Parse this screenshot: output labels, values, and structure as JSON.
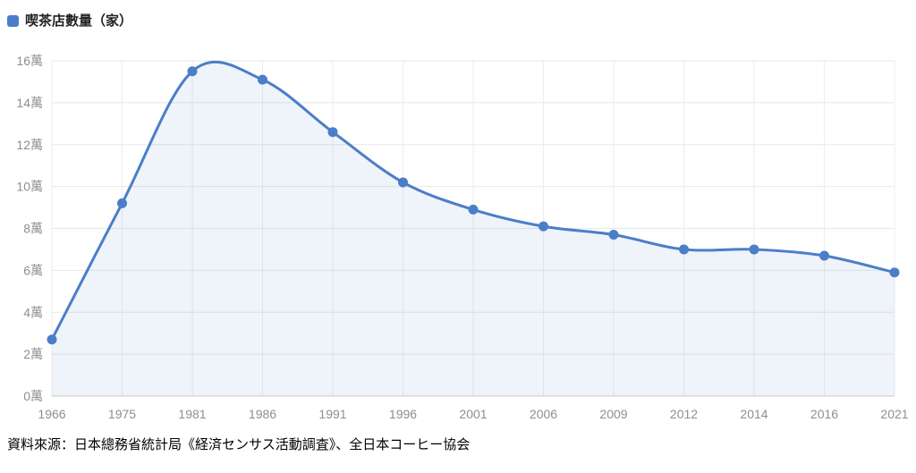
{
  "legend": {
    "label": "喫茶店數量（家）",
    "marker_color": "#4B7EC8"
  },
  "source": {
    "text": "資料來源：日本總務省統計局《経済センサス活動調査》、全日本コーヒー協会"
  },
  "chart_data": {
    "type": "line",
    "title": "",
    "series_name": "喫茶店數量（家）",
    "categories": [
      "1966",
      "1975",
      "1981",
      "1986",
      "1991",
      "1996",
      "2001",
      "2006",
      "2009",
      "2012",
      "2014",
      "2016",
      "2021"
    ],
    "values": [
      2.7,
      9.2,
      15.5,
      15.1,
      12.6,
      10.2,
      8.9,
      8.1,
      7.7,
      7.0,
      7.0,
      6.7,
      5.9
    ],
    "unit": "萬",
    "y_ticks": [
      "0萬",
      "2萬",
      "4萬",
      "6萬",
      "8萬",
      "10萬",
      "12萬",
      "14萬",
      "16萬"
    ],
    "ylim": [
      0,
      16
    ],
    "y_step": 2,
    "smooth": true,
    "area": true,
    "grid": true,
    "legend_position": "top-left",
    "colors": {
      "line": "#4B7EC8",
      "marker": "#4B7EC8",
      "area": "rgba(75,126,200,0.09)",
      "grid_h": "#e8e8e8",
      "grid_v": "#ededed",
      "axis": "#cccccc",
      "tick_label": "#8e8e8e"
    }
  }
}
